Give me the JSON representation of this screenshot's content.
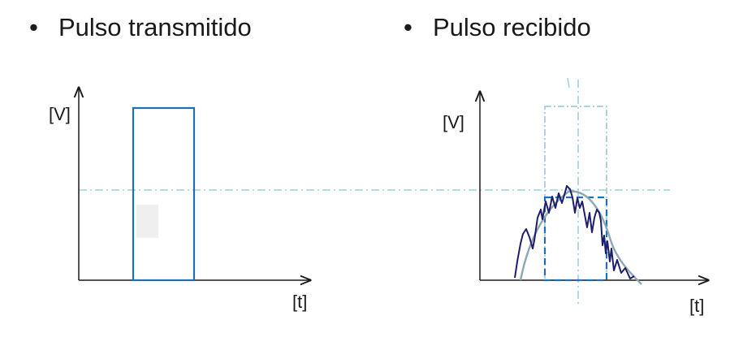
{
  "bullets": [
    {
      "marker": "•",
      "text": "Pulso transmitido"
    },
    {
      "marker": "•",
      "text": "Pulso recibido"
    }
  ],
  "left_plot": {
    "ylabel": "[V]",
    "xlabel": "[t]"
  },
  "right_plot": {
    "ylabel": "[V]",
    "xlabel": "[t]"
  },
  "colors": {
    "axis": "#1a1a1a",
    "pulse": "#1f6fb8",
    "threshold": "#8fc6d6",
    "received": "#1d1d6b",
    "envelope": "#8fa7b3",
    "ghost": "#7fb5cf"
  }
}
